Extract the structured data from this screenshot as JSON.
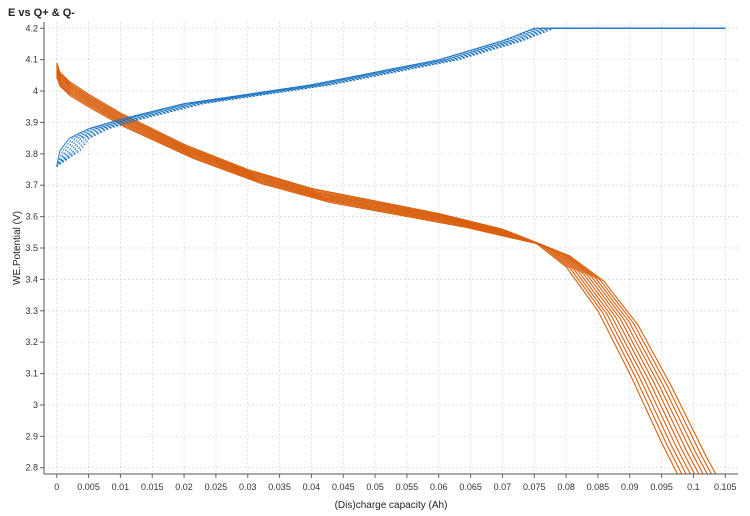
{
  "chart_data": {
    "type": "line",
    "title": "E vs Q+ & Q-",
    "xlabel": "(Dis)charge capacity (Ah)",
    "ylabel": "WE.Potential (V)",
    "xlim": [
      -0.002,
      0.107
    ],
    "ylim": [
      2.78,
      4.22
    ],
    "x_ticks": [
      "0",
      "0.005",
      "0.01",
      "0.015",
      "0.02",
      "0.025",
      "0.03",
      "0.035",
      "0.04",
      "0.045",
      "0.05",
      "0.055",
      "0.06",
      "0.065",
      "0.07",
      "0.075",
      "0.08",
      "0.085",
      "0.09",
      "0.095",
      "0.1",
      "0.105"
    ],
    "y_ticks": [
      "2.8",
      "2.9",
      "3",
      "3.1",
      "3.2",
      "3.3",
      "3.4",
      "3.5",
      "3.6",
      "3.7",
      "3.8",
      "3.9",
      "4",
      "4.1",
      "4.2"
    ],
    "grid": true,
    "colors": {
      "charge": "#1f77c4",
      "discharge": "#d95f0e"
    },
    "charge_curve": {
      "x": [
        0,
        0.0005,
        0.002,
        0.005,
        0.01,
        0.02,
        0.03,
        0.04,
        0.05,
        0.06,
        0.07,
        0.075,
        0.0765,
        0.105
      ],
      "y": [
        3.76,
        3.81,
        3.85,
        3.88,
        3.91,
        3.96,
        3.99,
        4.02,
        4.06,
        4.1,
        4.16,
        4.2,
        4.2,
        4.2
      ],
      "cycles": 8,
      "x_shift_per_cycle": 0.00045
    },
    "discharge_curve": {
      "x": [
        0,
        0.0005,
        0.002,
        0.005,
        0.01,
        0.02,
        0.03,
        0.04,
        0.05,
        0.06,
        0.07,
        0.075,
        0.08,
        0.085,
        0.09,
        0.095,
        0.0975
      ],
      "y": [
        4.09,
        4.06,
        4.03,
        3.99,
        3.93,
        3.83,
        3.75,
        3.69,
        3.65,
        3.61,
        3.56,
        3.52,
        3.44,
        3.3,
        3.1,
        2.88,
        2.78
      ],
      "cycles": 10,
      "x_stretch_per_cycle": 0.0008,
      "y_offset_per_cycle": 0.005
    }
  }
}
